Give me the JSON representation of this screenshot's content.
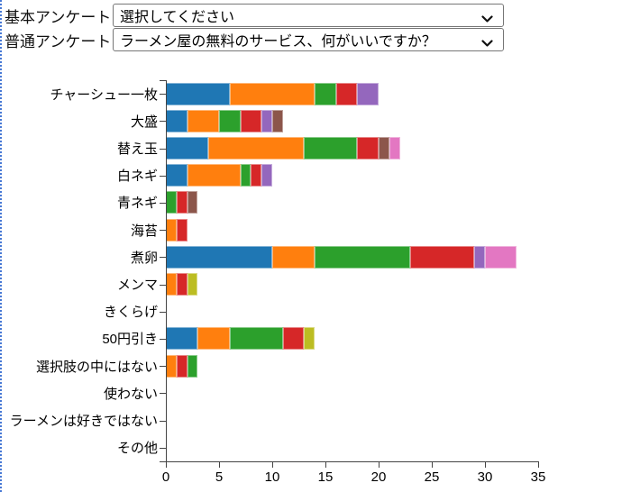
{
  "form": {
    "rows": [
      {
        "label": "基本アンケート",
        "value": "選択してください"
      },
      {
        "label": "普通アンケート",
        "value": "ラーメン屋の無料のサービス、何がいいですか？"
      }
    ]
  },
  "chart_data": {
    "type": "bar",
    "orientation": "horizontal",
    "stacked": true,
    "categories": [
      "チャーシュー一枚",
      "大盛",
      "替え玉",
      "白ネギ",
      "青ネギ",
      "海苔",
      "煮卵",
      "メンマ",
      "きくらげ",
      "50円引き",
      "選択肢の中にはない",
      "使わない",
      "ラーメンは好きではない",
      "その他"
    ],
    "bars": [
      {
        "category": "チャーシュー一枚",
        "total": 20,
        "segments": [
          {
            "color": "blue",
            "value": 6
          },
          {
            "color": "orange",
            "value": 8
          },
          {
            "color": "green",
            "value": 2
          },
          {
            "color": "red",
            "value": 2
          },
          {
            "color": "purple",
            "value": 2
          }
        ]
      },
      {
        "category": "大盛",
        "total": 11,
        "segments": [
          {
            "color": "blue",
            "value": 2
          },
          {
            "color": "orange",
            "value": 3
          },
          {
            "color": "green",
            "value": 2
          },
          {
            "color": "red",
            "value": 2
          },
          {
            "color": "purple",
            "value": 1
          },
          {
            "color": "brown",
            "value": 1
          }
        ]
      },
      {
        "category": "替え玉",
        "total": 22,
        "segments": [
          {
            "color": "blue",
            "value": 4
          },
          {
            "color": "orange",
            "value": 9
          },
          {
            "color": "green",
            "value": 5
          },
          {
            "color": "red",
            "value": 2
          },
          {
            "color": "brown",
            "value": 1
          },
          {
            "color": "pink",
            "value": 1
          }
        ]
      },
      {
        "category": "白ネギ",
        "total": 10,
        "segments": [
          {
            "color": "blue",
            "value": 2
          },
          {
            "color": "orange",
            "value": 5
          },
          {
            "color": "green",
            "value": 1
          },
          {
            "color": "red",
            "value": 1
          },
          {
            "color": "purple",
            "value": 1
          }
        ]
      },
      {
        "category": "青ネギ",
        "total": 3,
        "segments": [
          {
            "color": "green",
            "value": 1
          },
          {
            "color": "red",
            "value": 1
          },
          {
            "color": "brown",
            "value": 1
          }
        ]
      },
      {
        "category": "海苔",
        "total": 2,
        "segments": [
          {
            "color": "orange",
            "value": 1
          },
          {
            "color": "red",
            "value": 1
          }
        ]
      },
      {
        "category": "煮卵",
        "total": 33,
        "segments": [
          {
            "color": "blue",
            "value": 10
          },
          {
            "color": "orange",
            "value": 4
          },
          {
            "color": "green",
            "value": 9
          },
          {
            "color": "red",
            "value": 6
          },
          {
            "color": "purple",
            "value": 1
          },
          {
            "color": "pink",
            "value": 3
          }
        ]
      },
      {
        "category": "メンマ",
        "total": 3,
        "segments": [
          {
            "color": "orange",
            "value": 1
          },
          {
            "color": "red",
            "value": 1
          },
          {
            "color": "olive",
            "value": 1
          }
        ]
      },
      {
        "category": "きくらげ",
        "total": 0,
        "segments": []
      },
      {
        "category": "50円引き",
        "total": 14,
        "segments": [
          {
            "color": "blue",
            "value": 3
          },
          {
            "color": "orange",
            "value": 3
          },
          {
            "color": "green",
            "value": 5
          },
          {
            "color": "red",
            "value": 2
          },
          {
            "color": "olive",
            "value": 1
          }
        ]
      },
      {
        "category": "選択肢の中にはない",
        "total": 3,
        "segments": [
          {
            "color": "orange",
            "value": 1
          },
          {
            "color": "red",
            "value": 1
          },
          {
            "color": "green",
            "value": 1
          }
        ]
      },
      {
        "category": "使わない",
        "total": 0,
        "segments": []
      },
      {
        "category": "ラーメンは好きではない",
        "total": 0,
        "segments": []
      },
      {
        "category": "その他",
        "total": 0,
        "segments": []
      }
    ],
    "x_ticks": [
      0,
      5,
      10,
      15,
      20,
      25,
      30,
      35
    ],
    "xlim": [
      0,
      35
    ],
    "grid": false,
    "legend": "none",
    "palette": {
      "blue": "#1f77b4",
      "orange": "#ff7f0e",
      "green": "#2ca02c",
      "red": "#d62728",
      "purple": "#9467bd",
      "brown": "#8c564b",
      "pink": "#e377c2",
      "olive": "#bcbd22"
    },
    "axis_color": "#444444"
  }
}
